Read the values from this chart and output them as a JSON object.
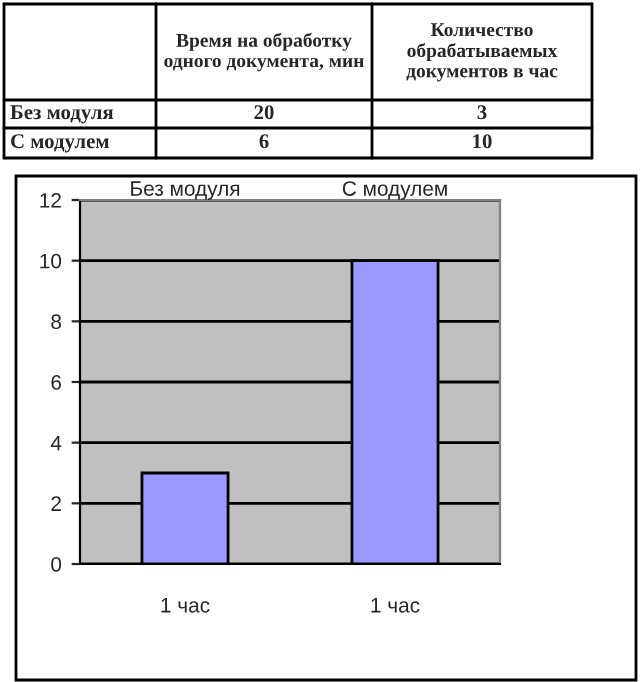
{
  "chart_data": [
    {
      "type": "other",
      "categories": [
        "Без модуля",
        "С модулем"
      ],
      "series": [
        {
          "name": "Время на обработку одного документа, мин",
          "values": [
            20,
            6
          ]
        },
        {
          "name": "Количество обрабатываемых документов в час",
          "values": [
            3,
            10
          ]
        }
      ],
      "data_labels": true
    },
    {
      "type": "bar",
      "categories": [
        "1 час",
        "1 час"
      ],
      "series": [
        {
          "color": "#9999ff",
          "values": [
            3,
            10
          ]
        }
      ],
      "annotations": [
        "Без модуля",
        "С модулем"
      ],
      "ylim": [
        0,
        12
      ],
      "yticks": [
        0,
        2,
        4,
        6,
        8,
        10,
        12
      ],
      "grid": "y",
      "legend": false
    }
  ]
}
